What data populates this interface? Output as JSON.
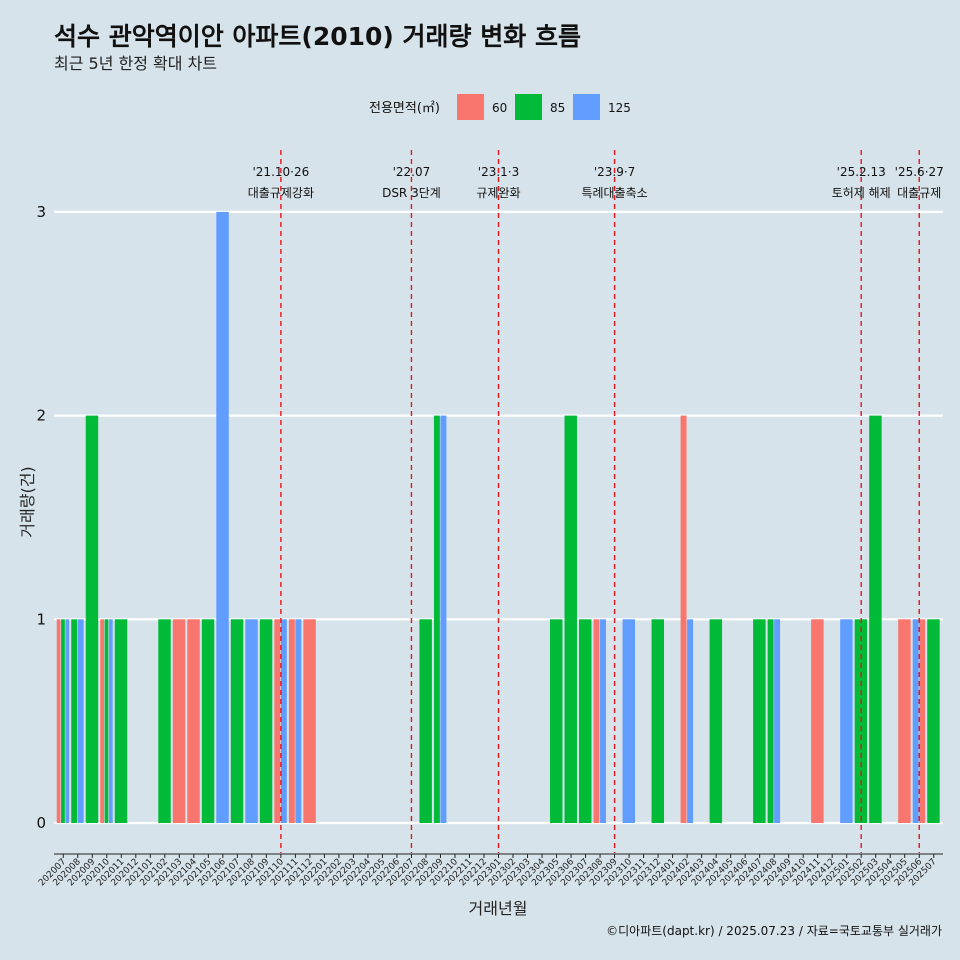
{
  "header": {
    "title": "석수 관악역이안 아파트(2010) 거래량 변화 흐름",
    "subtitle": "최근 5년 한정 확대 차트"
  },
  "caption": "©디아파트(dapt.kr) / 2025.07.23 / 자료=국토교통부 실거래가",
  "colors": {
    "background": "#d6e3ea",
    "grid": "#ffffff",
    "event_line": "#e8141c",
    "60": "#f8766d",
    "85": "#00ba38",
    "125": "#619cff"
  },
  "chart_data": {
    "type": "bar",
    "position": "dodge",
    "xlabel": "거래년월",
    "ylabel": "거래량(건)",
    "ylim": [
      0,
      3
    ],
    "yticks": [
      0,
      1,
      2,
      3
    ],
    "grid": true,
    "legend": {
      "title": "전용면적(㎡)",
      "placement": "top",
      "items": [
        "60",
        "85",
        "125"
      ]
    },
    "categories": [
      "202007",
      "202008",
      "202009",
      "202010",
      "202011",
      "202012",
      "202101",
      "202102",
      "202103",
      "202104",
      "202105",
      "202106",
      "202107",
      "202108",
      "202109",
      "202110",
      "202111",
      "202112",
      "202201",
      "202202",
      "202203",
      "202204",
      "202205",
      "202206",
      "202207",
      "202208",
      "202209",
      "202210",
      "202211",
      "202212",
      "202301",
      "202302",
      "202303",
      "202304",
      "202305",
      "202306",
      "202307",
      "202308",
      "202309",
      "202310",
      "202311",
      "202312",
      "202401",
      "202402",
      "202403",
      "202404",
      "202405",
      "202406",
      "202407",
      "202408",
      "202409",
      "202410",
      "202411",
      "202412",
      "202501",
      "202502",
      "202503",
      "202504",
      "202505",
      "202506",
      "202507"
    ],
    "bars": [
      {
        "month": "202007",
        "sizes": [
          {
            "area": "60",
            "count": 1
          },
          {
            "area": "85",
            "count": 1
          },
          {
            "area": "125",
            "count": 1
          }
        ]
      },
      {
        "month": "202008",
        "sizes": [
          {
            "area": "85",
            "count": 1
          },
          {
            "area": "125",
            "count": 1
          }
        ]
      },
      {
        "month": "202009",
        "sizes": [
          {
            "area": "85",
            "count": 2
          }
        ]
      },
      {
        "month": "202010",
        "sizes": [
          {
            "area": "60",
            "count": 1
          },
          {
            "area": "85",
            "count": 1
          },
          {
            "area": "125",
            "count": 1
          }
        ]
      },
      {
        "month": "202011",
        "sizes": [
          {
            "area": "85",
            "count": 1
          }
        ]
      },
      {
        "month": "202102",
        "sizes": [
          {
            "area": "85",
            "count": 1
          }
        ]
      },
      {
        "month": "202103",
        "sizes": [
          {
            "area": "60",
            "count": 1
          }
        ]
      },
      {
        "month": "202104",
        "sizes": [
          {
            "area": "60",
            "count": 1
          }
        ]
      },
      {
        "month": "202105",
        "sizes": [
          {
            "area": "85",
            "count": 1
          }
        ]
      },
      {
        "month": "202106",
        "sizes": [
          {
            "area": "125",
            "count": 3
          }
        ]
      },
      {
        "month": "202107",
        "sizes": [
          {
            "area": "85",
            "count": 1
          }
        ]
      },
      {
        "month": "202108",
        "sizes": [
          {
            "area": "125",
            "count": 1
          }
        ]
      },
      {
        "month": "202109",
        "sizes": [
          {
            "area": "85",
            "count": 1
          }
        ]
      },
      {
        "month": "202110",
        "sizes": [
          {
            "area": "60",
            "count": 1
          },
          {
            "area": "125",
            "count": 1
          }
        ]
      },
      {
        "month": "202111",
        "sizes": [
          {
            "area": "60",
            "count": 1
          },
          {
            "area": "125",
            "count": 1
          }
        ]
      },
      {
        "month": "202112",
        "sizes": [
          {
            "area": "60",
            "count": 1
          }
        ]
      },
      {
        "month": "202208",
        "sizes": [
          {
            "area": "85",
            "count": 1
          }
        ]
      },
      {
        "month": "202209",
        "sizes": [
          {
            "area": "85",
            "count": 2
          },
          {
            "area": "125",
            "count": 2
          }
        ]
      },
      {
        "month": "202305",
        "sizes": [
          {
            "area": "85",
            "count": 1
          }
        ]
      },
      {
        "month": "202306",
        "sizes": [
          {
            "area": "85",
            "count": 2
          }
        ]
      },
      {
        "month": "202307",
        "sizes": [
          {
            "area": "85",
            "count": 1
          }
        ]
      },
      {
        "month": "202308",
        "sizes": [
          {
            "area": "60",
            "count": 1
          },
          {
            "area": "125",
            "count": 1
          }
        ]
      },
      {
        "month": "202310",
        "sizes": [
          {
            "area": "125",
            "count": 1
          }
        ]
      },
      {
        "month": "202312",
        "sizes": [
          {
            "area": "85",
            "count": 1
          }
        ]
      },
      {
        "month": "202402",
        "sizes": [
          {
            "area": "60",
            "count": 2
          },
          {
            "area": "125",
            "count": 1
          }
        ]
      },
      {
        "month": "202404",
        "sizes": [
          {
            "area": "85",
            "count": 1
          }
        ]
      },
      {
        "month": "202407",
        "sizes": [
          {
            "area": "85",
            "count": 1
          }
        ]
      },
      {
        "month": "202408",
        "sizes": [
          {
            "area": "85",
            "count": 1
          },
          {
            "area": "125",
            "count": 1
          }
        ]
      },
      {
        "month": "202411",
        "sizes": [
          {
            "area": "60",
            "count": 1
          }
        ]
      },
      {
        "month": "202501",
        "sizes": [
          {
            "area": "125",
            "count": 1
          }
        ]
      },
      {
        "month": "202502",
        "sizes": [
          {
            "area": "85",
            "count": 1
          }
        ]
      },
      {
        "month": "202503",
        "sizes": [
          {
            "area": "85",
            "count": 2
          }
        ]
      },
      {
        "month": "202505",
        "sizes": [
          {
            "area": "60",
            "count": 1
          }
        ]
      },
      {
        "month": "202506",
        "sizes": [
          {
            "area": "125",
            "count": 1
          },
          {
            "area": "60",
            "count": 1
          }
        ]
      },
      {
        "month": "202507",
        "sizes": [
          {
            "area": "85",
            "count": 1
          }
        ]
      }
    ],
    "events": [
      {
        "month": "202110",
        "date": "'21.10·26",
        "label": "대출규제강화"
      },
      {
        "month": "202207",
        "date": "'22.07",
        "label": "DSR 3단계"
      },
      {
        "month": "202301",
        "date": "'23.1·3",
        "label": "규제완화"
      },
      {
        "month": "202309",
        "date": "'23.9·7",
        "label": "특례대출축소"
      },
      {
        "month": "202502",
        "date": "'25.2.13",
        "label": "토허제 해제"
      },
      {
        "month": "202506",
        "date": "'25.6·27",
        "label": "대출규제"
      }
    ]
  }
}
